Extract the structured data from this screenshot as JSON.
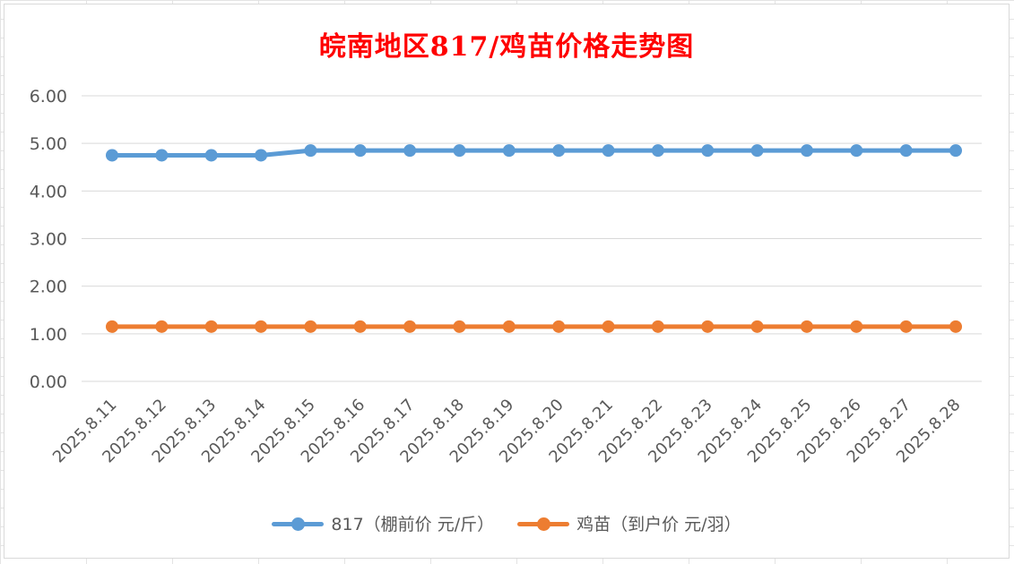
{
  "chart_data": {
    "type": "line",
    "title": "皖南地区817/鸡苗价格走势图",
    "categories": [
      "2025.8.11",
      "2025.8.12",
      "2025.8.13",
      "2025.8.14",
      "2025.8.15",
      "2025.8.16",
      "2025.8.17",
      "2025.8.18",
      "2025.8.19",
      "2025.8.20",
      "2025.8.21",
      "2025.8.22",
      "2025.8.23",
      "2025.8.24",
      "2025.8.25",
      "2025.8.26",
      "2025.8.27",
      "2025.8.28"
    ],
    "y_ticks": [
      "0.00",
      "1.00",
      "2.00",
      "3.00",
      "4.00",
      "5.00",
      "6.00"
    ],
    "ylim": [
      0,
      6
    ],
    "grid": "horizontal",
    "legend_position": "bottom",
    "series": [
      {
        "name": "817（棚前价 元/斤）",
        "color": "#5b9bd5",
        "values": [
          4.75,
          4.75,
          4.75,
          4.75,
          4.85,
          4.85,
          4.85,
          4.85,
          4.85,
          4.85,
          4.85,
          4.85,
          4.85,
          4.85,
          4.85,
          4.85,
          4.85,
          4.85
        ]
      },
      {
        "name": "鸡苗（到户价 元/羽）",
        "color": "#ed7d31",
        "values": [
          1.15,
          1.15,
          1.15,
          1.15,
          1.15,
          1.15,
          1.15,
          1.15,
          1.15,
          1.15,
          1.15,
          1.15,
          1.15,
          1.15,
          1.15,
          1.15,
          1.15,
          1.15
        ]
      }
    ]
  }
}
